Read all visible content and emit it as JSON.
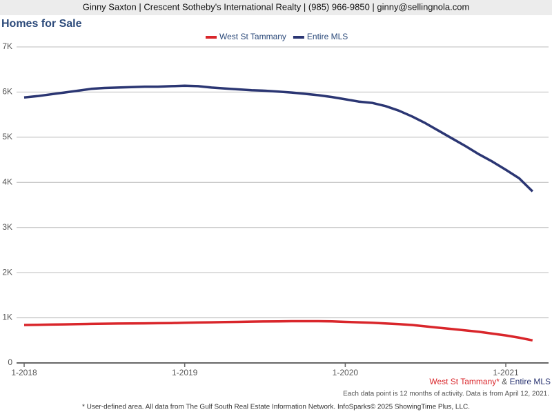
{
  "header": "Ginny Saxton | Crescent Sotheby's International Realty | (985) 966-9850 | ginny@sellingnola.com",
  "chart_data": {
    "type": "line",
    "title": "Homes for Sale",
    "categories": [
      "1-2018",
      null,
      null,
      null,
      null,
      null,
      null,
      null,
      null,
      null,
      null,
      null,
      "1-2019",
      null,
      null,
      null,
      null,
      null,
      null,
      null,
      null,
      null,
      null,
      null,
      "1-2020",
      null,
      null,
      null,
      null,
      null,
      null,
      null,
      null,
      null,
      null,
      null,
      "1-2021",
      null,
      null
    ],
    "series": [
      {
        "name": "West St Tammany",
        "color": "#d9262b",
        "values": [
          840,
          845,
          850,
          855,
          860,
          865,
          870,
          872,
          875,
          878,
          880,
          883,
          890,
          895,
          900,
          905,
          910,
          915,
          918,
          920,
          925,
          925,
          925,
          920,
          910,
          900,
          890,
          875,
          860,
          840,
          810,
          780,
          750,
          720,
          690,
          650,
          610,
          560,
          500
        ]
      },
      {
        "name": "Entire MLS",
        "color": "#2b3673",
        "values": [
          5880,
          5910,
          5950,
          5990,
          6030,
          6070,
          6090,
          6100,
          6110,
          6120,
          6120,
          6130,
          6140,
          6130,
          6100,
          6080,
          6060,
          6040,
          6030,
          6010,
          5990,
          5960,
          5930,
          5890,
          5840,
          5790,
          5760,
          5690,
          5590,
          5460,
          5310,
          5140,
          4970,
          4800,
          4620,
          4460,
          4280,
          4090,
          3800
        ]
      }
    ],
    "ylim": [
      0,
      7000
    ],
    "yticks": [
      0,
      {
        "value": 1000,
        "label": "1K"
      },
      {
        "value": 2000,
        "label": "2K"
      },
      {
        "value": 3000,
        "label": "3K"
      },
      {
        "value": 4000,
        "label": "4K"
      },
      {
        "value": 5000,
        "label": "5K"
      },
      {
        "value": 6000,
        "label": "6K"
      },
      {
        "value": 7000,
        "label": "7K"
      }
    ],
    "grid": true,
    "legend": "top"
  },
  "footer": {
    "area": "West St Tammany*",
    "joiner": "&",
    "market": "Entire MLS",
    "note": "Each data point is 12 months of activity. Data is from April 12, 2021.",
    "disclaimer": "* User-defined area. All data from The Gulf South Real Estate Information Network. InfoSparks© 2025 ShowingTime Plus, LLC."
  }
}
